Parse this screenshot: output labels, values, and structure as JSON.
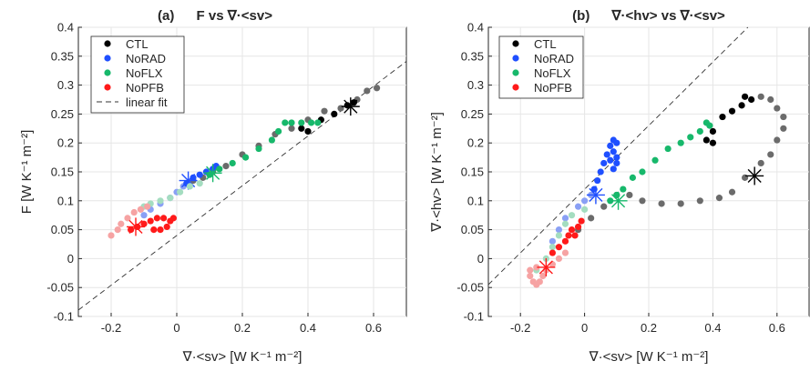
{
  "chart_data": [
    {
      "type": "scatter",
      "panel_label": "(a)",
      "title": "F  vs  ∇·<sv>",
      "xlabel": "∇·<sv>  [W K⁻¹ m⁻²]",
      "ylabel": "F [W K⁻¹ m⁻²]",
      "xlim": [
        -0.3,
        0.7
      ],
      "ylim": [
        -0.1,
        0.4
      ],
      "xticks": [
        "-0.2",
        "0",
        "0.2",
        "0.4",
        "0.6"
      ],
      "yticks": [
        "-0.1",
        "-0.05",
        "0",
        "0.05",
        "0.1",
        "0.15",
        "0.2",
        "0.25",
        "0.3",
        "0.35",
        "0.4"
      ],
      "grid": true,
      "legend_position": "top-left",
      "legend": [
        "CTL",
        "NoRAD",
        "NoFLX",
        "NoPFB",
        "linear fit"
      ],
      "fit_line": {
        "slope": 0.43,
        "intercept": 0.04
      },
      "series": [
        {
          "name": "CTL",
          "color": "#000000",
          "faded_color": "#6b6b6b",
          "faded": [
            [
              0.05,
              0.135
            ],
            [
              0.08,
              0.14
            ],
            [
              0.11,
              0.15
            ],
            [
              0.15,
              0.16
            ],
            [
              0.2,
              0.18
            ],
            [
              0.25,
              0.195
            ],
            [
              0.3,
              0.215
            ],
            [
              0.35,
              0.225
            ],
            [
              0.4,
              0.24
            ],
            [
              0.45,
              0.255
            ],
            [
              0.5,
              0.26
            ],
            [
              0.55,
              0.275
            ],
            [
              0.58,
              0.29
            ],
            [
              0.61,
              0.295
            ]
          ],
          "solid": [
            [
              0.38,
              0.225
            ],
            [
              0.4,
              0.22
            ],
            [
              0.44,
              0.24
            ],
            [
              0.48,
              0.25
            ],
            [
              0.52,
              0.265
            ],
            [
              0.54,
              0.27
            ]
          ],
          "star": [
            0.53,
            0.263
          ]
        },
        {
          "name": "NoRAD",
          "color": "#1f4fff",
          "faded_color": "#8aa0f5",
          "faded": [
            [
              -0.1,
              0.075
            ],
            [
              -0.08,
              0.085
            ],
            [
              -0.05,
              0.095
            ],
            [
              -0.02,
              0.105
            ],
            [
              0.0,
              0.115
            ],
            [
              0.02,
              0.125
            ]
          ],
          "solid": [
            [
              0.03,
              0.13
            ],
            [
              0.05,
              0.14
            ],
            [
              0.07,
              0.145
            ],
            [
              0.09,
              0.15
            ],
            [
              0.11,
              0.155
            ],
            [
              0.12,
              0.16
            ]
          ],
          "star": [
            0.035,
            0.135
          ]
        },
        {
          "name": "NoFLX",
          "color": "#17b86b",
          "faded_color": "#a4ddc0",
          "faded": [
            [
              -0.1,
              0.09
            ],
            [
              -0.08,
              0.095
            ],
            [
              -0.05,
              0.1
            ],
            [
              -0.02,
              0.105
            ],
            [
              0.01,
              0.115
            ],
            [
              0.04,
              0.125
            ],
            [
              0.07,
              0.13
            ]
          ],
          "solid": [
            [
              0.1,
              0.145
            ],
            [
              0.13,
              0.155
            ],
            [
              0.17,
              0.165
            ],
            [
              0.21,
              0.175
            ],
            [
              0.25,
              0.19
            ],
            [
              0.29,
              0.205
            ],
            [
              0.31,
              0.22
            ],
            [
              0.33,
              0.235
            ],
            [
              0.35,
              0.235
            ],
            [
              0.38,
              0.235
            ],
            [
              0.41,
              0.235
            ],
            [
              0.43,
              0.235
            ]
          ],
          "star": [
            0.11,
            0.148
          ]
        },
        {
          "name": "NoPFB",
          "color": "#ff1a1a",
          "faded_color": "#f6a3a3",
          "faded": [
            [
              -0.2,
              0.04
            ],
            [
              -0.18,
              0.05
            ],
            [
              -0.17,
              0.06
            ],
            [
              -0.15,
              0.07
            ],
            [
              -0.13,
              0.08
            ],
            [
              -0.11,
              0.085
            ],
            [
              -0.09,
              0.09
            ]
          ],
          "solid": [
            [
              -0.14,
              0.05
            ],
            [
              -0.12,
              0.055
            ],
            [
              -0.1,
              0.06
            ],
            [
              -0.08,
              0.065
            ],
            [
              -0.06,
              0.07
            ],
            [
              -0.04,
              0.07
            ],
            [
              -0.02,
              0.065
            ],
            [
              -0.03,
              0.055
            ],
            [
              -0.05,
              0.05
            ],
            [
              -0.07,
              0.05
            ],
            [
              -0.01,
              0.07
            ]
          ],
          "star": [
            -0.125,
            0.055
          ]
        }
      ]
    },
    {
      "type": "scatter",
      "panel_label": "(b)",
      "title": "∇·<hv>  vs  ∇·<sv>",
      "xlabel": "∇·<sv>  [W K⁻¹ m⁻²]",
      "ylabel": "∇·<hv>  [W K⁻¹ m⁻²]",
      "xlim": [
        -0.3,
        0.7
      ],
      "ylim": [
        -0.1,
        0.4
      ],
      "xticks": [
        "-0.2",
        "0",
        "0.2",
        "0.4",
        "0.6"
      ],
      "yticks": [
        "-0.1",
        "-0.05",
        "0",
        "0.05",
        "0.1",
        "0.15",
        "0.2",
        "0.25",
        "0.3",
        "0.35",
        "0.4"
      ],
      "grid": true,
      "legend_position": "top-left",
      "legend": [
        "CTL",
        "NoRAD",
        "NoFLX",
        "NoPFB"
      ],
      "fit_line": {
        "slope": 0.55,
        "intercept": 0.12
      },
      "series": [
        {
          "name": "CTL",
          "color": "#000000",
          "faded_color": "#6b6b6b",
          "faded": [
            [
              -0.02,
              0.05
            ],
            [
              0.02,
              0.07
            ],
            [
              0.06,
              0.09
            ],
            [
              0.1,
              0.11
            ],
            [
              0.14,
              0.11
            ],
            [
              0.18,
              0.1
            ],
            [
              0.24,
              0.095
            ],
            [
              0.3,
              0.095
            ],
            [
              0.36,
              0.1
            ],
            [
              0.42,
              0.105
            ],
            [
              0.46,
              0.115
            ],
            [
              0.5,
              0.14
            ],
            [
              0.55,
              0.165
            ],
            [
              0.58,
              0.18
            ],
            [
              0.6,
              0.205
            ],
            [
              0.62,
              0.225
            ],
            [
              0.62,
              0.245
            ],
            [
              0.6,
              0.26
            ],
            [
              0.58,
              0.275
            ],
            [
              0.55,
              0.28
            ]
          ],
          "solid": [
            [
              0.38,
              0.205
            ],
            [
              0.4,
              0.2
            ],
            [
              0.4,
              0.22
            ],
            [
              0.43,
              0.245
            ],
            [
              0.46,
              0.255
            ],
            [
              0.49,
              0.265
            ],
            [
              0.5,
              0.28
            ],
            [
              0.52,
              0.275
            ]
          ],
          "star": [
            0.53,
            0.143
          ]
        },
        {
          "name": "NoRAD",
          "color": "#1f4fff",
          "faded_color": "#8aa0f5",
          "faded": [
            [
              -0.1,
              0.03
            ],
            [
              -0.08,
              0.05
            ],
            [
              -0.06,
              0.07
            ],
            [
              -0.02,
              0.09
            ],
            [
              0.0,
              0.1
            ],
            [
              0.02,
              0.11
            ]
          ],
          "solid": [
            [
              0.03,
              0.12
            ],
            [
              0.04,
              0.135
            ],
            [
              0.05,
              0.15
            ],
            [
              0.06,
              0.165
            ],
            [
              0.07,
              0.18
            ],
            [
              0.08,
              0.195
            ],
            [
              0.09,
              0.205
            ],
            [
              0.1,
              0.2
            ],
            [
              0.09,
              0.185
            ],
            [
              0.08,
              0.17
            ],
            [
              0.1,
              0.175
            ],
            [
              0.1,
              0.165
            ],
            [
              0.09,
              0.155
            ]
          ],
          "star": [
            0.035,
            0.11
          ]
        },
        {
          "name": "NoFLX",
          "color": "#17b86b",
          "faded_color": "#a4ddc0",
          "faded": [
            [
              -0.15,
              -0.02
            ],
            [
              -0.12,
              0.0
            ],
            [
              -0.1,
              0.02
            ],
            [
              -0.08,
              0.04
            ],
            [
              -0.06,
              0.06
            ],
            [
              -0.04,
              0.075
            ],
            [
              0.0,
              0.085
            ]
          ],
          "solid": [
            [
              0.08,
              0.1
            ],
            [
              0.1,
              0.11
            ],
            [
              0.12,
              0.12
            ],
            [
              0.15,
              0.14
            ],
            [
              0.18,
              0.15
            ],
            [
              0.22,
              0.17
            ],
            [
              0.26,
              0.19
            ],
            [
              0.3,
              0.2
            ],
            [
              0.33,
              0.21
            ],
            [
              0.36,
              0.22
            ],
            [
              0.38,
              0.235
            ],
            [
              0.39,
              0.23
            ]
          ],
          "star": [
            0.105,
            0.1
          ]
        },
        {
          "name": "NoPFB",
          "color": "#ff1a1a",
          "faded_color": "#f6a3a3",
          "faded": [
            [
              -0.17,
              -0.03
            ],
            [
              -0.16,
              -0.04
            ],
            [
              -0.15,
              -0.045
            ],
            [
              -0.14,
              -0.04
            ],
            [
              -0.13,
              -0.03
            ],
            [
              -0.12,
              -0.02
            ],
            [
              -0.1,
              -0.01
            ],
            [
              -0.08,
              0.0
            ],
            [
              -0.06,
              0.01
            ],
            [
              -0.17,
              -0.02
            ],
            [
              -0.15,
              -0.015
            ]
          ],
          "solid": [
            [
              -0.1,
              0.01
            ],
            [
              -0.08,
              0.02
            ],
            [
              -0.06,
              0.03
            ],
            [
              -0.05,
              0.04
            ],
            [
              -0.04,
              0.05
            ],
            [
              -0.02,
              0.055
            ],
            [
              -0.01,
              0.065
            ],
            [
              -0.03,
              0.04
            ]
          ],
          "star": [
            -0.12,
            -0.015
          ]
        }
      ]
    }
  ]
}
